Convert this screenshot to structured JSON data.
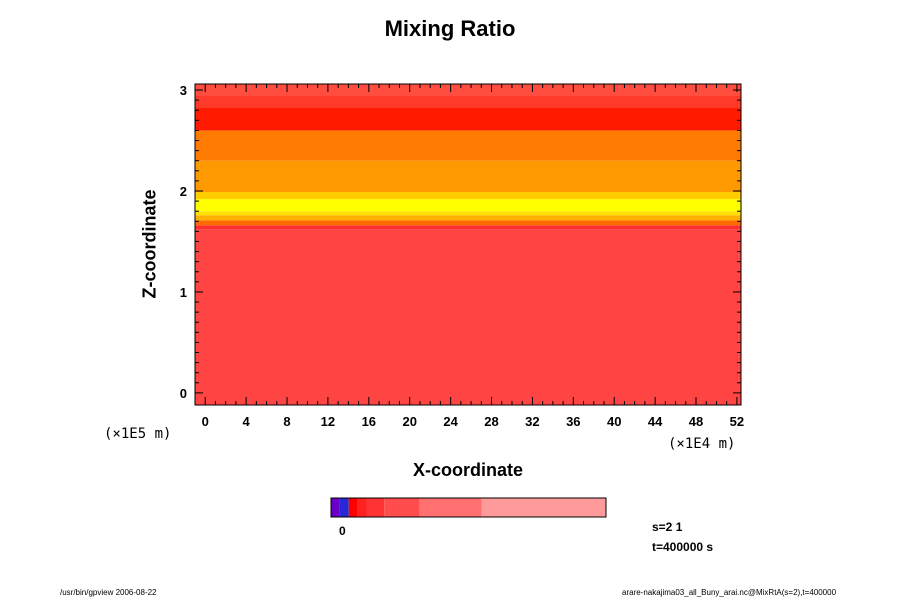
{
  "chart_data": {
    "type": "heatmap",
    "title": "Mixing Ratio",
    "xlabel": "X-coordinate",
    "ylabel": "Z-coordinate",
    "x_scale_label": "(×1E4 m)",
    "y_scale_label": "(×1E5 m)",
    "xlim": [
      -1,
      52.4
    ],
    "ylim": [
      -0.12,
      3.06
    ],
    "x_ticks": [
      0,
      4,
      8,
      12,
      16,
      20,
      24,
      28,
      32,
      36,
      40,
      44,
      48,
      52
    ],
    "x_tick_labels": [
      "0",
      "4",
      "8",
      "12",
      "16",
      "20",
      "24",
      "28",
      "32",
      "36",
      "40",
      "44",
      "48",
      "52"
    ],
    "y_ticks": [
      0,
      1,
      2,
      3
    ],
    "y_tick_labels": [
      "0",
      "1",
      "2",
      "3"
    ],
    "layers": [
      {
        "z0": -0.12,
        "z1": 1.62,
        "color": "#ff4444"
      },
      {
        "z0": 1.62,
        "z1": 1.66,
        "color": "#ff3030"
      },
      {
        "z0": 1.66,
        "z1": 1.71,
        "color": "#ff6a00"
      },
      {
        "z0": 1.71,
        "z1": 1.76,
        "color": "#ffb000"
      },
      {
        "z0": 1.76,
        "z1": 1.8,
        "color": "#ffe000"
      },
      {
        "z0": 1.8,
        "z1": 1.92,
        "color": "#ffff00"
      },
      {
        "z0": 1.92,
        "z1": 1.99,
        "color": "#ffcc00"
      },
      {
        "z0": 1.99,
        "z1": 2.3,
        "color": "#ff9900"
      },
      {
        "z0": 2.3,
        "z1": 2.6,
        "color": "#ff7a00"
      },
      {
        "z0": 2.6,
        "z1": 2.83,
        "color": "#ff1a00"
      },
      {
        "z0": 2.83,
        "z1": 2.95,
        "color": "#ff3a2a"
      },
      {
        "z0": 2.95,
        "z1": 3.06,
        "color": "#ff4d40"
      }
    ],
    "colorbar": {
      "segments": [
        {
          "color": "#6a00c8",
          "width": 1
        },
        {
          "color": "#2828d8",
          "width": 1
        },
        {
          "color": "#ff0000",
          "width": 1
        },
        {
          "color": "#ff2020",
          "width": 1
        },
        {
          "color": "#ff3333",
          "width": 2
        },
        {
          "color": "#ff4d4d",
          "width": 4
        },
        {
          "color": "#ff7070",
          "width": 7
        },
        {
          "color": "#ff9a9a",
          "width": 14
        }
      ],
      "zero_label": "0"
    }
  },
  "annotations": {
    "s_text": "s=2 1",
    "t_text": "t=400000 s"
  },
  "footer": {
    "left": "/usr/bin/gpview 2006-08-22",
    "right": "arare-nakajima03_all_Buny_arai.nc@MixRtA(s=2),t=400000"
  }
}
